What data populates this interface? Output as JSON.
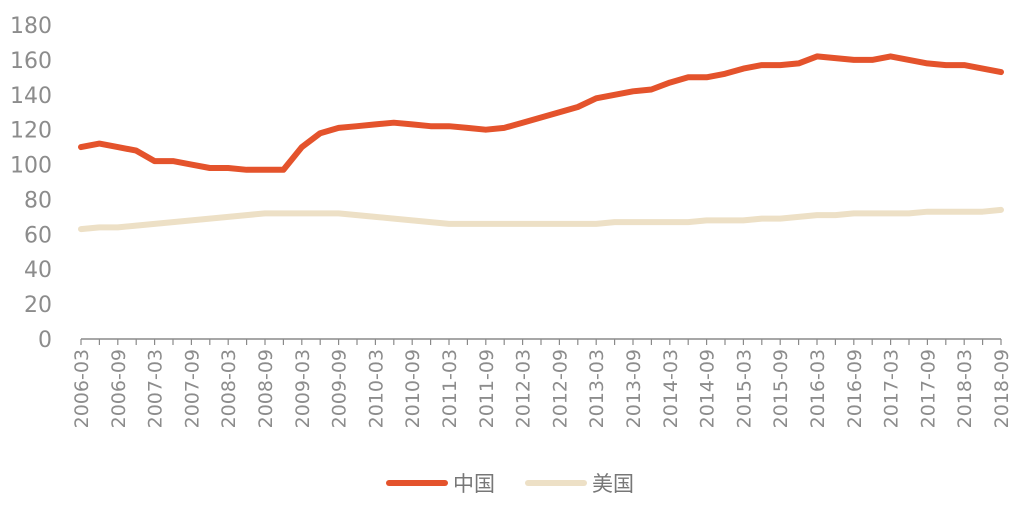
{
  "chart_data": {
    "type": "line",
    "title": "",
    "xlabel": "",
    "ylabel": "",
    "ylim": [
      0,
      180
    ],
    "yticks": [
      0,
      20,
      40,
      60,
      80,
      100,
      120,
      140,
      160,
      180
    ],
    "grid": false,
    "legend_position": "bottom-center",
    "x_tick_labels": [
      "2006-03",
      "2006-09",
      "2007-03",
      "2007-09",
      "2008-03",
      "2008-09",
      "2009-03",
      "2009-09",
      "2010-03",
      "2010-09",
      "2011-03",
      "2011-09",
      "2012-03",
      "2012-09",
      "2013-03",
      "2013-09",
      "2014-03",
      "2014-09",
      "2015-03",
      "2015-09",
      "2016-03",
      "2016-09",
      "2017-03",
      "2017-09",
      "2018-03",
      "2018-09"
    ],
    "x": [
      "2006-03",
      "2006-06",
      "2006-09",
      "2006-12",
      "2007-03",
      "2007-06",
      "2007-09",
      "2007-12",
      "2008-03",
      "2008-06",
      "2008-09",
      "2008-12",
      "2009-03",
      "2009-06",
      "2009-09",
      "2009-12",
      "2010-03",
      "2010-06",
      "2010-09",
      "2010-12",
      "2011-03",
      "2011-06",
      "2011-09",
      "2011-12",
      "2012-03",
      "2012-06",
      "2012-09",
      "2012-12",
      "2013-03",
      "2013-06",
      "2013-09",
      "2013-12",
      "2014-03",
      "2014-06",
      "2014-09",
      "2014-12",
      "2015-03",
      "2015-06",
      "2015-09",
      "2015-12",
      "2016-03",
      "2016-06",
      "2016-09",
      "2016-12",
      "2017-03",
      "2017-06",
      "2017-09",
      "2017-12",
      "2018-03",
      "2018-06",
      "2018-09"
    ],
    "series": [
      {
        "name": "中国",
        "color": "#e4532c",
        "values": [
          110,
          112,
          110,
          108,
          102,
          102,
          100,
          98,
          98,
          97,
          97,
          97,
          110,
          118,
          121,
          122,
          123,
          124,
          123,
          122,
          122,
          121,
          120,
          121,
          124,
          127,
          130,
          133,
          138,
          140,
          142,
          143,
          147,
          150,
          150,
          152,
          155,
          157,
          157,
          158,
          162,
          161,
          160,
          160,
          162,
          160,
          158,
          157,
          157,
          155,
          153
        ]
      },
      {
        "name": "美国",
        "color": "#ede0c6",
        "values": [
          63,
          64,
          64,
          65,
          66,
          67,
          68,
          69,
          70,
          71,
          72,
          72,
          72,
          72,
          72,
          71,
          70,
          69,
          68,
          67,
          66,
          66,
          66,
          66,
          66,
          66,
          66,
          66,
          66,
          67,
          67,
          67,
          67,
          67,
          68,
          68,
          68,
          69,
          69,
          70,
          71,
          71,
          72,
          72,
          72,
          72,
          73,
          73,
          73,
          73,
          74
        ]
      }
    ]
  }
}
